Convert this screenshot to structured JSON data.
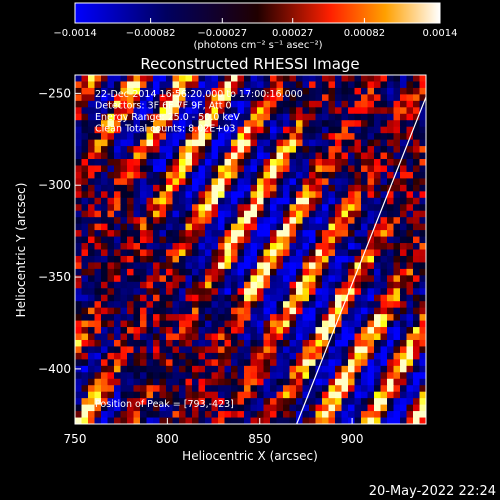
{
  "chart_data": {
    "type": "heatmap",
    "title": "Reconstructed RHESSI Image",
    "xlabel": "Heliocentric X (arcsec)",
    "ylabel": "Heliocentric Y (arcsec)",
    "xlim": [
      750,
      940
    ],
    "ylim": [
      -430,
      -240
    ],
    "x_ticks": [
      750,
      800,
      850,
      900
    ],
    "y_ticks": [
      -250,
      -300,
      -350,
      -400
    ],
    "colorbar": {
      "min": -0.0014,
      "max": 0.0014,
      "ticks": [
        "-0.0014",
        "-0.00082",
        "-0.00027",
        "0.00027",
        "0.00082",
        "0.0014"
      ],
      "units": "(photons cm⁻² s⁻¹ asec⁻²)",
      "colormap": [
        "#0000ff",
        "#000000",
        "#ff0000",
        "#ffff00",
        "#ffffff"
      ]
    },
    "annotations": [
      "22-Dec-2014 16:56:20.000 to 17:00:16.000",
      "Detectors: 3F 6F 7F 9F, Att 0",
      "Energy Range: 25.0 - 50.0 keV",
      "Clean     Total counts: 8.02E+03"
    ],
    "peak_label": "Position of Peak = [793,-423]",
    "peak": [
      793,
      -423
    ],
    "limb_points": [
      [
        870,
        -430
      ],
      [
        940,
        -252
      ]
    ],
    "grid": false,
    "legend": "none"
  },
  "footer": {
    "timestamp": "20-May-2022 22:24"
  }
}
